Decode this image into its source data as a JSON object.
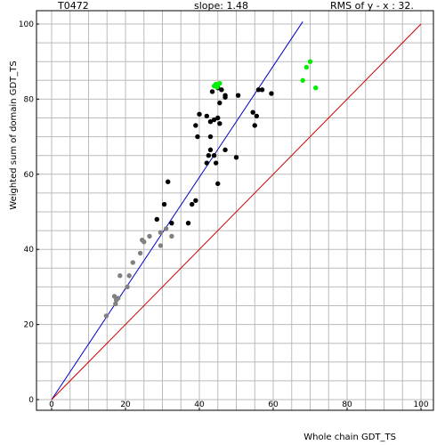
{
  "header": {
    "target": "T0472",
    "slope": "slope: 1.48",
    "rms": "RMS of y - x : 32."
  },
  "chart_data": {
    "type": "scatter",
    "title": "",
    "xlabel": "Whole chain GDT_TS",
    "ylabel": "Weighted sum of domain GDT_TS",
    "xlim": [
      0,
      100
    ],
    "ylim": [
      0,
      100
    ],
    "x_ticks": [
      "0",
      "20",
      "40",
      "60",
      "80",
      "100"
    ],
    "y_ticks": [
      "0",
      "20",
      "40",
      "60",
      "80",
      "100"
    ],
    "grid": true,
    "colors": {
      "gray": "#808080",
      "black": "#000000",
      "green": "#00ee00",
      "fit_line": "#0000cc",
      "diagonal": "#cc0000",
      "grid": "#bbbbbb"
    },
    "lines": [
      {
        "kind": "fit",
        "slope": 1.48,
        "x": [
          0,
          68
        ],
        "color": "#0000cc"
      },
      {
        "kind": "identity",
        "slope": 1.0,
        "x": [
          0,
          100
        ],
        "color": "#cc0000"
      }
    ],
    "series": [
      {
        "color": "#808080",
        "points": [
          [
            14.8,
            22.3
          ],
          [
            17.3,
            25.5
          ],
          [
            17.5,
            26.5
          ],
          [
            17.0,
            27.5
          ],
          [
            18.0,
            27.0
          ],
          [
            20.5,
            30.0
          ],
          [
            18.5,
            33.0
          ],
          [
            21.0,
            33.0
          ],
          [
            22.0,
            36.5
          ],
          [
            24.0,
            39.0
          ],
          [
            24.5,
            42.5
          ],
          [
            25.0,
            42.0
          ],
          [
            26.5,
            43.5
          ],
          [
            29.5,
            41.0
          ],
          [
            29.5,
            44.5
          ],
          [
            31.0,
            45.5
          ],
          [
            32.5,
            43.5
          ]
        ]
      },
      {
        "color": "#000000",
        "points": [
          [
            28.5,
            48.0
          ],
          [
            30.5,
            52.0
          ],
          [
            31.5,
            58.0
          ],
          [
            32.5,
            47.0
          ],
          [
            37.0,
            47.0
          ],
          [
            38.0,
            52.0
          ],
          [
            39.0,
            53.0
          ],
          [
            39.0,
            73.0
          ],
          [
            39.5,
            70.0
          ],
          [
            40.0,
            76.0
          ],
          [
            42.0,
            75.5
          ],
          [
            42.0,
            63.0
          ],
          [
            42.5,
            65.0
          ],
          [
            43.0,
            66.5
          ],
          [
            43.0,
            70.0
          ],
          [
            43.0,
            74.0
          ],
          [
            43.5,
            82.0
          ],
          [
            44.0,
            65.0
          ],
          [
            44.0,
            74.5
          ],
          [
            44.5,
            63.0
          ],
          [
            45.0,
            75.0
          ],
          [
            45.0,
            57.5
          ],
          [
            45.5,
            73.5
          ],
          [
            45.5,
            79.0
          ],
          [
            45.0,
            83.0
          ],
          [
            46.0,
            82.5
          ],
          [
            47.0,
            81.0
          ],
          [
            47.0,
            80.5
          ],
          [
            47.0,
            66.5
          ],
          [
            50.0,
            64.5
          ],
          [
            50.5,
            81.0
          ],
          [
            54.5,
            76.5
          ],
          [
            55.0,
            73.0
          ],
          [
            55.5,
            75.5
          ],
          [
            56.0,
            82.5
          ],
          [
            57.0,
            82.5
          ],
          [
            59.5,
            81.5
          ]
        ]
      },
      {
        "color": "#00ee00",
        "points": [
          [
            44.0,
            83.5
          ],
          [
            44.5,
            84.0
          ],
          [
            45.0,
            83.8
          ],
          [
            45.5,
            84.2
          ],
          [
            44.8,
            83.2
          ],
          [
            68.0,
            85.0
          ],
          [
            69.0,
            88.5
          ],
          [
            70.0,
            90.0
          ],
          [
            71.5,
            83.0
          ]
        ]
      }
    ]
  }
}
